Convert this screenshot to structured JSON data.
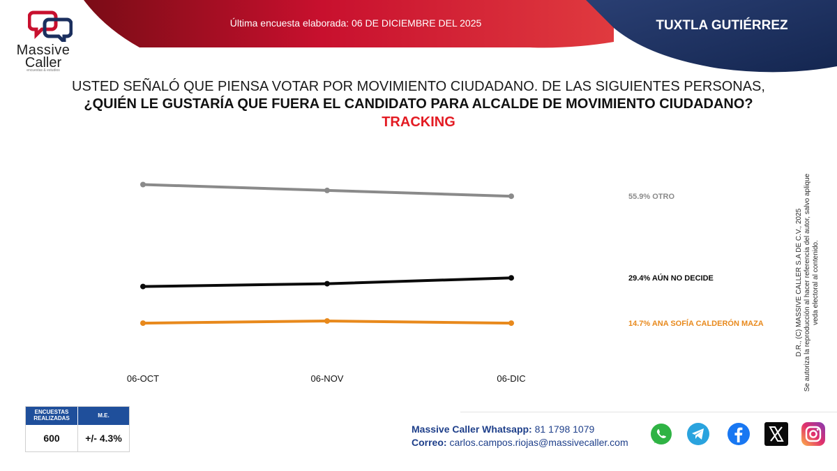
{
  "header": {
    "brand_line1": "Massive",
    "brand_line2": "Caller",
    "tagline": "encuestas & estudios",
    "survey_date": "Última encuesta elaborada: 06 DE DICIEMBRE DEL 2025",
    "city": "TUXTLA GUTIÉRREZ"
  },
  "question": {
    "line1": "USTED SEÑALÓ QUE PIENSA VOTAR POR MOVIMIENTO CIUDADANO. DE LAS SIGUIENTES PERSONAS,",
    "line2": "¿QUIÉN LE GUSTARÍA QUE FUERA EL CANDIDATO PARA ALCALDE DE MOVIMIENTO CIUDADANO?",
    "line3": "TRACKING"
  },
  "chart_data": {
    "type": "line",
    "title": "TRACKING",
    "xlabel": "",
    "ylabel": "",
    "grid": false,
    "legend": "right",
    "categories": [
      "06-OCT",
      "06-NOV",
      "06-DIC"
    ],
    "ylim": [
      0,
      70
    ],
    "series": [
      {
        "name": "OTRO",
        "values": [
          59.7,
          57.8,
          55.9
        ],
        "label": "55.9% OTRO",
        "color": "#8a8a8a"
      },
      {
        "name": "AÚN NO DECIDE",
        "values": [
          26.6,
          27.5,
          29.4
        ],
        "label": "29.4% AÚN NO DECIDE",
        "color": "#0a0a0a"
      },
      {
        "name": "ANA SOFÍA CALDERÓN MAZA",
        "values": [
          14.7,
          15.4,
          14.7
        ],
        "label": "14.7% ANA SOFÍA CALDERÓN MAZA",
        "color": "#e8891c"
      }
    ]
  },
  "copyright": {
    "line1": "D.R., (C) MASSIVE CALLER S.A DE C.V., 2025",
    "line2": "Se autoriza la reproducción al hacer referencia del autor, salvo aplique veda electoral al contenido."
  },
  "stats": {
    "col1_header": "ENCUESTAS REALIZADAS",
    "col2_header": "M.E.",
    "col1_value": "600",
    "col2_value": "+/- 4.3%"
  },
  "contact": {
    "whatsapp_label": "Massive Caller Whatsapp:",
    "whatsapp_number": "81 1798 1079",
    "email_label": "Correo:",
    "email": "carlos.campos.riojas@massivecaller.com"
  },
  "colors": {
    "header_red": "#c8102e",
    "header_navy": "#1b2f5e",
    "accent_blue": "#1f4f9b",
    "tracking_red": "#e31b23"
  },
  "social": [
    "whatsapp-icon",
    "telegram-icon",
    "facebook-icon",
    "x-icon",
    "instagram-icon"
  ]
}
